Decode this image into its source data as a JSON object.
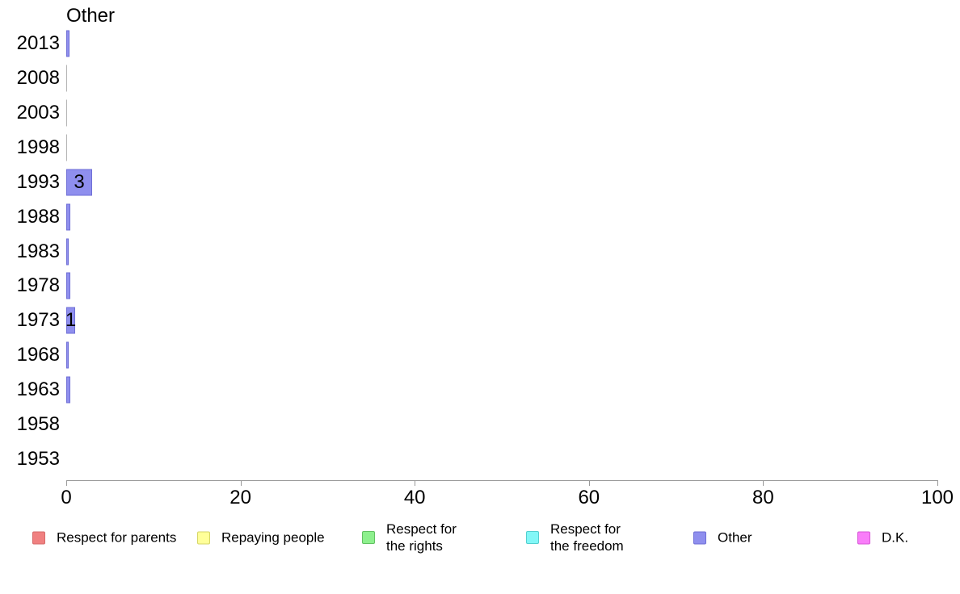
{
  "title": "Other",
  "colors": {
    "bar_fill": "#8f8fee",
    "bar_border": "#6e6ed6",
    "zero_line": "#b3b3b3",
    "axis_line": "#999999",
    "text": "#000000",
    "background": "#ffffff"
  },
  "chart_data": {
    "type": "bar",
    "orientation": "horizontal",
    "title": "Other",
    "series_name": "Other",
    "categories": [
      "2013",
      "2008",
      "2003",
      "1998",
      "1993",
      "1988",
      "1983",
      "1978",
      "1973",
      "1968",
      "1963",
      "1958",
      "1953"
    ],
    "values": [
      0.4,
      0,
      0,
      0,
      3,
      0.5,
      0.3,
      0.5,
      1,
      0.3,
      0.5,
      null,
      null
    ],
    "bar_labels": [
      "",
      "",
      "",
      "",
      "3",
      "",
      "",
      "",
      "1",
      "",
      "",
      "",
      ""
    ],
    "xlabel": "",
    "ylabel": "",
    "xlim": [
      0,
      100
    ],
    "x_ticks": [
      0,
      20,
      40,
      60,
      80,
      100
    ],
    "x_tick_labels": [
      "0",
      "20",
      "40",
      "60",
      "80",
      "100"
    ],
    "grid": false,
    "legend_position": "bottom",
    "notes": "null values = no bar drawn (1958, 1953); zero values drawn as thin gray line"
  },
  "legend": {
    "items": [
      {
        "label": "Respect for parents",
        "fill": "#f08080",
        "border": "#d66a6a"
      },
      {
        "label": "Repaying people",
        "fill": "#ffff99",
        "border": "#d6d666"
      },
      {
        "label": "Respect for\nthe rights",
        "fill": "#8df08d",
        "border": "#62c162"
      },
      {
        "label": "Respect for\nthe freedom",
        "fill": "#82f7f7",
        "border": "#52cfcf"
      },
      {
        "label": "Other",
        "fill": "#8f8fee",
        "border": "#6e6ed6"
      },
      {
        "label": "D.K.",
        "fill": "#f97df9",
        "border": "#d655d6"
      }
    ]
  }
}
